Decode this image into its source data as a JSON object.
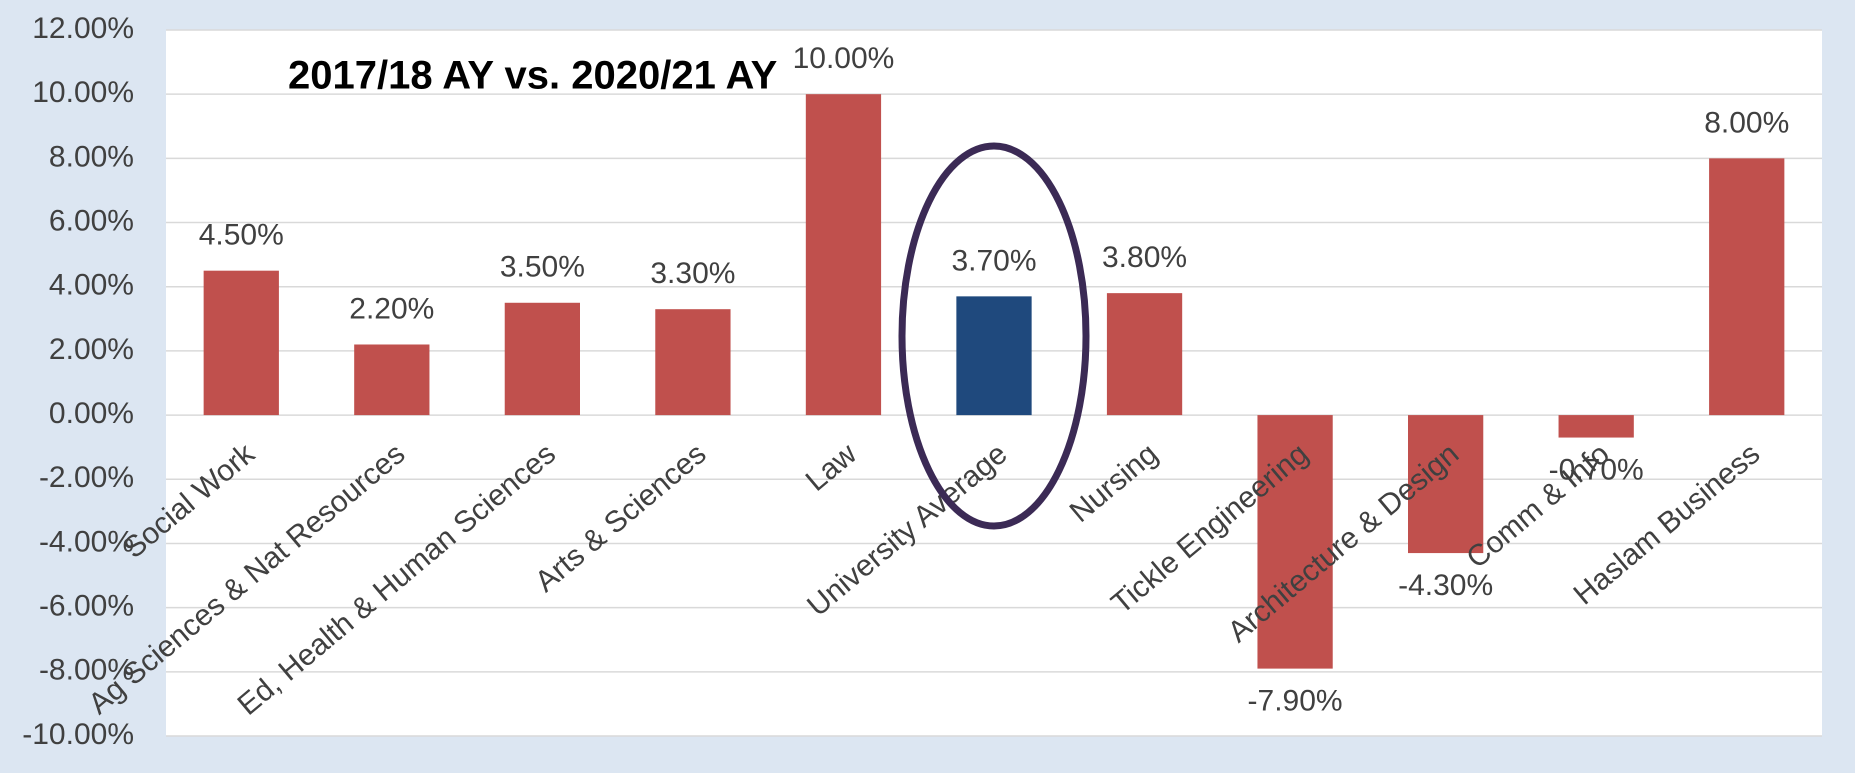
{
  "chart_data": {
    "type": "bar",
    "title": "2017/18 AY vs. 2020/21 AY",
    "categories": [
      "Social Work",
      "Ag Sciences & Nat Resources",
      "Ed, Health & Human Sciences",
      "Arts & Sciences",
      "Law",
      "University Average",
      "Nursing",
      "Tickle Engineering",
      "Architecture & Design",
      "Comm & Info",
      "Haslam Business"
    ],
    "values": [
      4.5,
      2.2,
      3.5,
      3.3,
      10,
      3.7,
      3.8,
      -7.9,
      -4.3,
      -0.7,
      8
    ],
    "value_labels": [
      "4.50%",
      "2.20%",
      "3.50%",
      "3.30%",
      "10.00%",
      "3.70%",
      "3.80%",
      "-7.90%",
      "-4.30%",
      "-0.70%",
      "8.00%"
    ],
    "colors": [
      "#c0504d",
      "#c0504d",
      "#c0504d",
      "#c0504d",
      "#c0504d",
      "#1f497d",
      "#c0504d",
      "#c0504d",
      "#c0504d",
      "#c0504d",
      "#c0504d"
    ],
    "ylim": [
      -10,
      12
    ],
    "yticks": [
      {
        "value": -10,
        "label": "-10.00%"
      },
      {
        "value": -8,
        "label": "-8.00%"
      },
      {
        "value": -6,
        "label": "-6.00%"
      },
      {
        "value": -4,
        "label": "-4.00%"
      },
      {
        "value": -2,
        "label": "-2.00%"
      },
      {
        "value": 0,
        "label": "0.00%"
      },
      {
        "value": 2,
        "label": "2.00%"
      },
      {
        "value": 4,
        "label": "4.00%"
      },
      {
        "value": 6,
        "label": "6.00%"
      },
      {
        "value": 8,
        "label": "8.00%"
      },
      {
        "value": 10,
        "label": "10.00%"
      },
      {
        "value": 12,
        "label": "12.00%"
      }
    ],
    "grid": true
  }
}
